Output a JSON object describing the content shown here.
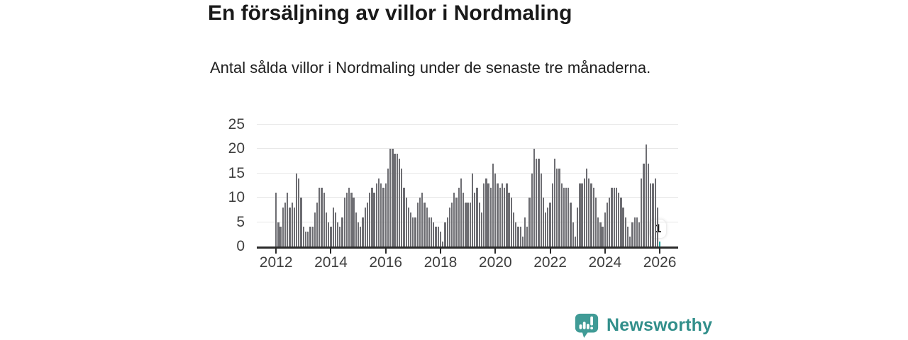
{
  "header": {
    "title": "En försäljning av villor i Nordmaling",
    "subtitle": "Antal sålda villor i Nordmaling under de senaste tre månaderna."
  },
  "chart_data": {
    "type": "bar",
    "title": "En försäljning av villor i Nordmaling",
    "xlabel": "",
    "ylabel": "",
    "ylim": [
      0,
      25
    ],
    "y_ticks": [
      0,
      5,
      10,
      15,
      20,
      25
    ],
    "x_tick_labels": [
      "2012",
      "2014",
      "2016",
      "2018",
      "2020",
      "2022",
      "2024",
      "2026"
    ],
    "start_year": 2012,
    "frequency": "monthly-rolling-3-month-count",
    "grid": true,
    "legend": "none",
    "bar_color": "#6d6d72",
    "highlight_color": "#19a8a2",
    "annotation": {
      "label": "1",
      "value": 1,
      "position": "last-bar"
    },
    "values": [
      11,
      5,
      4,
      8,
      9,
      11,
      8,
      9,
      8,
      15,
      14,
      10,
      4,
      3,
      3,
      4,
      4,
      7,
      9,
      12,
      12,
      11,
      7,
      5,
      4,
      8,
      7,
      5,
      4,
      6,
      10,
      11,
      12,
      11,
      10,
      7,
      5,
      4,
      6,
      8,
      9,
      11,
      12,
      11,
      13,
      14,
      13,
      12,
      13,
      16,
      20,
      20,
      19,
      19,
      18,
      16,
      12,
      10,
      8,
      7,
      6,
      6,
      9,
      10,
      11,
      9,
      8,
      6,
      6,
      5,
      4,
      4,
      3,
      1,
      5,
      6,
      8,
      9,
      11,
      10,
      12,
      14,
      11,
      9,
      9,
      9,
      15,
      11,
      12,
      9,
      7,
      13,
      14,
      13,
      12,
      17,
      15,
      13,
      12,
      13,
      12,
      13,
      11,
      10,
      7,
      5,
      4,
      4,
      2,
      6,
      4,
      10,
      15,
      20,
      18,
      18,
      15,
      10,
      7,
      8,
      9,
      13,
      18,
      16,
      16,
      13,
      12,
      12,
      12,
      9,
      5,
      2,
      8,
      13,
      13,
      14,
      16,
      14,
      13,
      12,
      10,
      6,
      5,
      4,
      7,
      9,
      10,
      12,
      12,
      12,
      11,
      10,
      8,
      6,
      4,
      2,
      5,
      6,
      6,
      5,
      14,
      17,
      21,
      17,
      13,
      13,
      14,
      8,
      1
    ]
  },
  "branding": {
    "name": "Newsworthy",
    "text_color": "#328f8b",
    "icon_color": "#409b96",
    "icon": "newsworthy-speech-bubble-chart-icon"
  }
}
